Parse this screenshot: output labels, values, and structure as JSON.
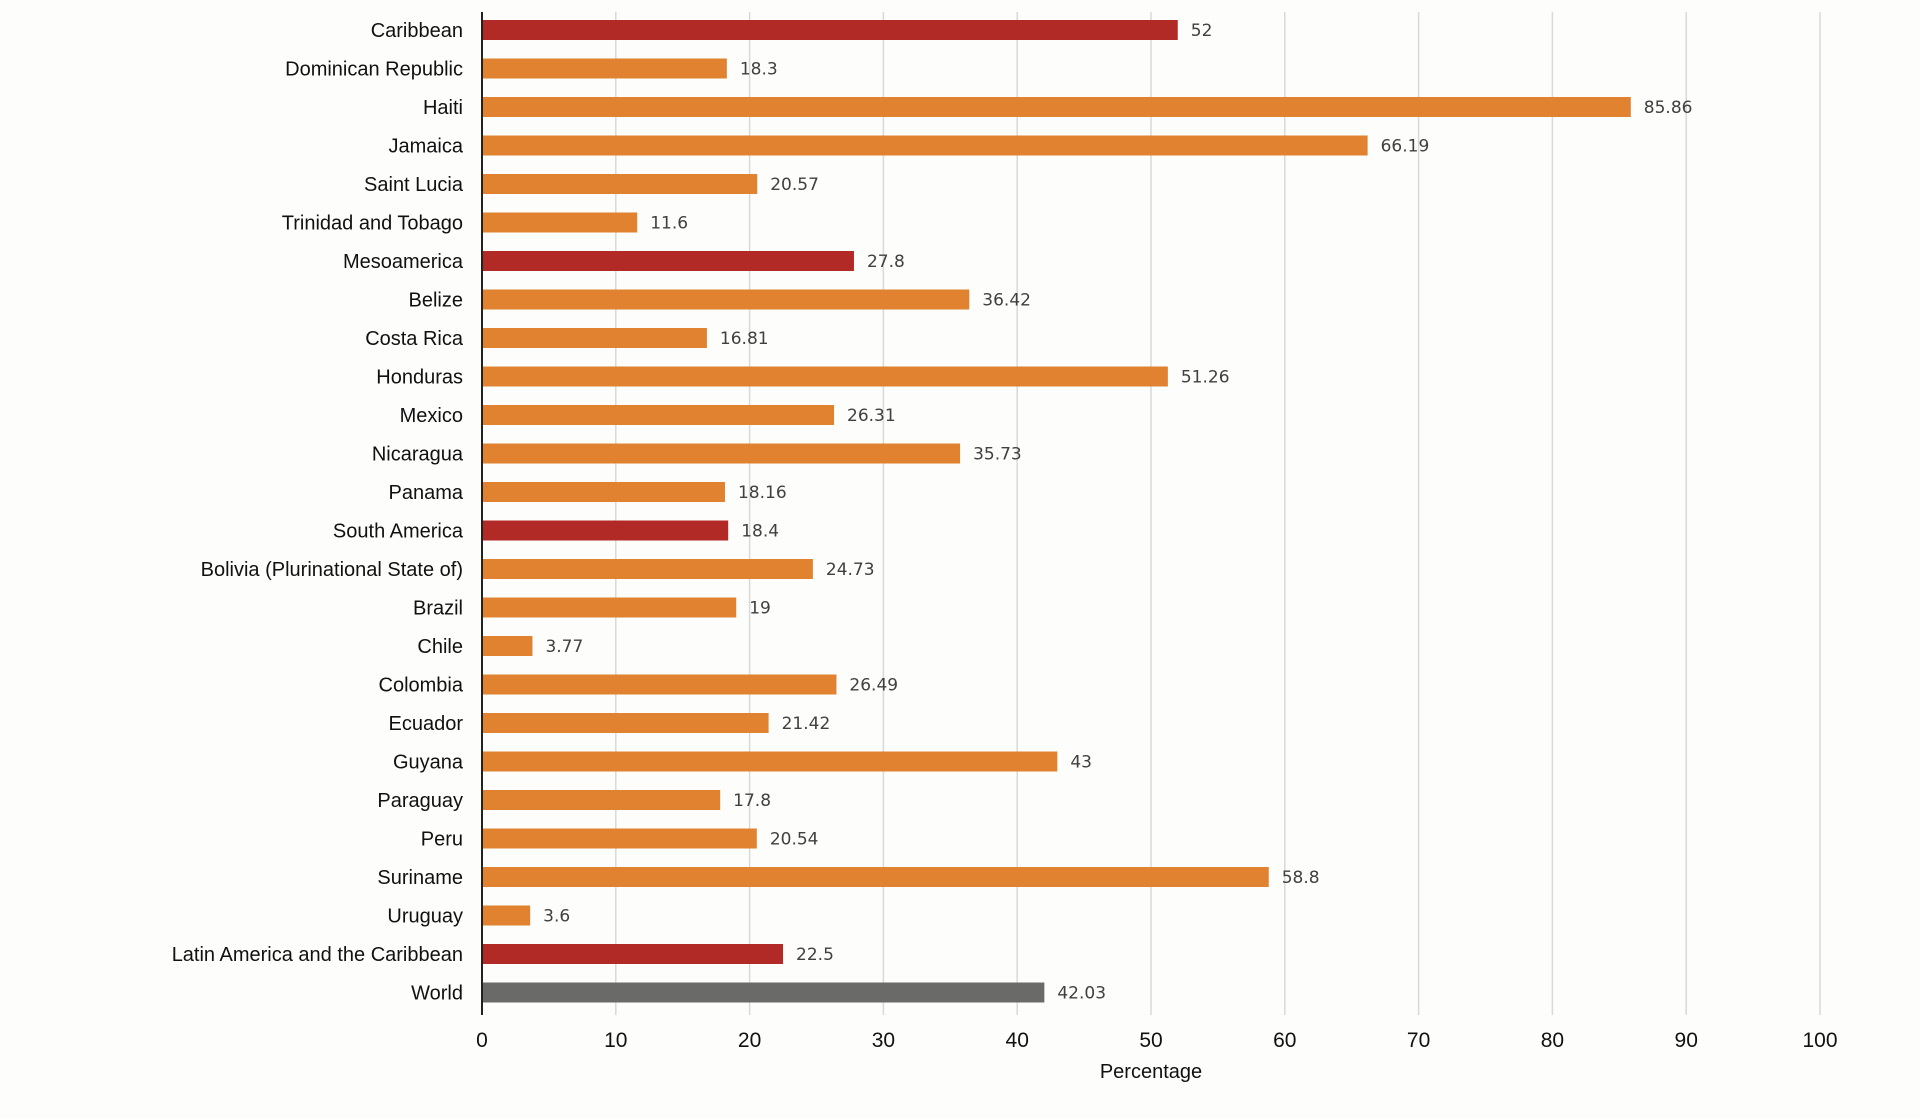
{
  "chart_data": {
    "type": "bar",
    "orientation": "horizontal",
    "title": "",
    "xlabel": "Percentage",
    "ylabel": "",
    "xlim": [
      0,
      100
    ],
    "xticks": [
      "0",
      "10",
      "20",
      "30",
      "40",
      "50",
      "60",
      "70",
      "80",
      "90",
      "100"
    ],
    "grid": "vertical",
    "legend": "none",
    "categories": [
      "Caribbean",
      "Dominican Republic",
      "Haiti",
      "Jamaica",
      "Saint Lucia",
      "Trinidad and Tobago",
      "Mesoamerica",
      "Belize",
      "Costa Rica",
      "Honduras",
      "Mexico",
      "Nicaragua",
      "Panama",
      "South America",
      "Bolivia (Plurinational State of)",
      "Brazil",
      "Chile",
      "Colombia",
      "Ecuador",
      "Guyana",
      "Paraguay",
      "Peru",
      "Suriname",
      "Uruguay",
      "Latin America and the Caribbean",
      "World"
    ],
    "values": [
      52,
      18.3,
      85.86,
      66.19,
      20.57,
      11.6,
      27.8,
      36.42,
      16.81,
      51.26,
      26.31,
      35.73,
      18.16,
      18.4,
      24.73,
      19,
      3.77,
      26.49,
      21.42,
      43,
      17.8,
      20.54,
      58.8,
      3.6,
      22.5,
      42.03
    ],
    "value_labels": [
      "52",
      "18.3",
      "85.86",
      "66.19",
      "20.57",
      "11.6",
      "27.8",
      "36.42",
      "16.81",
      "51.26",
      "26.31",
      "35.73",
      "18.16",
      "18.4",
      "24.73",
      "19",
      "3.77",
      "26.49",
      "21.42",
      "43",
      "17.8",
      "20.54",
      "58.8",
      "3.6",
      "22.5",
      "42.03"
    ],
    "bar_kind": [
      "region",
      "country",
      "country",
      "country",
      "country",
      "country",
      "region",
      "country",
      "country",
      "country",
      "country",
      "country",
      "country",
      "region",
      "country",
      "country",
      "country",
      "country",
      "country",
      "country",
      "country",
      "country",
      "country",
      "country",
      "region",
      "world"
    ],
    "colors": {
      "region": "#b22a26",
      "country": "#e08230",
      "world": "#6a6a68",
      "grid": "#d9d9d9",
      "axis": "#222222"
    }
  }
}
